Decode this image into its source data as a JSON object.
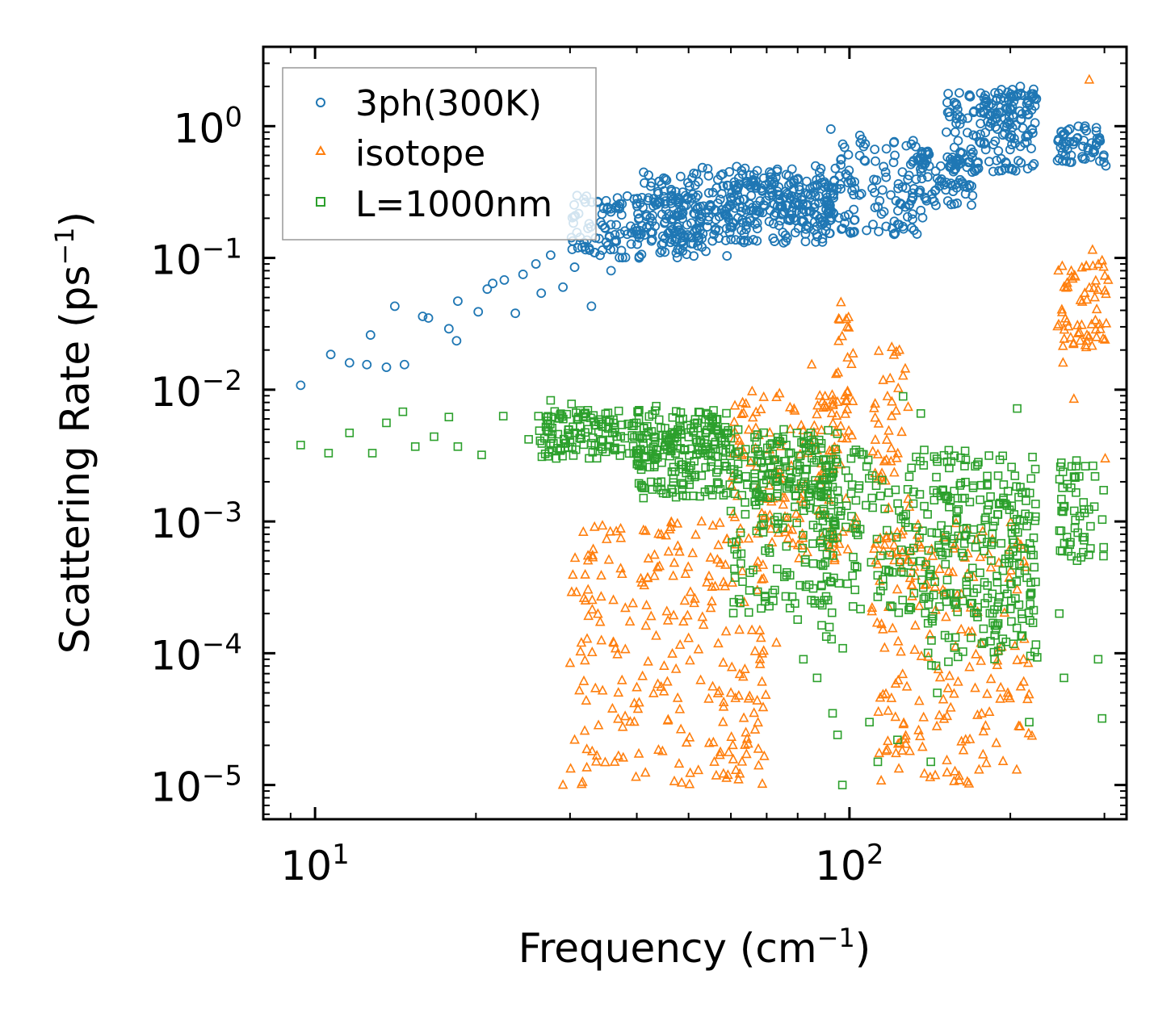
{
  "chart_data": {
    "type": "scatter",
    "xscale": "log",
    "yscale": "log",
    "xlim": [
      8,
      330
    ],
    "ylim": [
      5.5e-06,
      4
    ],
    "xlabel": "Frequency (cm",
    "xlabel_sup": "−1",
    "xlabel_end": ")",
    "ylabel": "Scattering Rate (ps",
    "ylabel_sup": "−1",
    "ylabel_end": ")",
    "x_major_ticks": [
      {
        "value": 10,
        "base": "10",
        "exp": "1"
      },
      {
        "value": 100,
        "base": "10",
        "exp": "2"
      }
    ],
    "y_major_ticks": [
      {
        "value": 1,
        "base": "10",
        "exp": "0"
      },
      {
        "value": 0.1,
        "base": "10",
        "exp": "−1"
      },
      {
        "value": 0.01,
        "base": "10",
        "exp": "−2"
      },
      {
        "value": 0.001,
        "base": "10",
        "exp": "−3"
      },
      {
        "value": 0.0001,
        "base": "10",
        "exp": "−4"
      },
      {
        "value": 1e-05,
        "base": "10",
        "exp": "−5"
      }
    ],
    "legend_position": "top-left",
    "series": [
      {
        "name": "3ph(300K)",
        "marker": "circle",
        "color": "#1f77b4",
        "points": [
          [
            9.4,
            0.0108
          ],
          [
            10.7,
            0.0185
          ],
          [
            11.6,
            0.016
          ],
          [
            12.5,
            0.0155
          ],
          [
            12.7,
            0.026
          ],
          [
            13.6,
            0.0148
          ],
          [
            14.1,
            0.043
          ],
          [
            14.7,
            0.0155
          ],
          [
            15.9,
            0.036
          ],
          [
            16.3,
            0.035
          ],
          [
            17.8,
            0.029
          ],
          [
            18.5,
            0.047
          ],
          [
            18.4,
            0.0235
          ],
          [
            20.2,
            0.039
          ],
          [
            21,
            0.058
          ],
          [
            21.5,
            0.064
          ],
          [
            22.6,
            0.068
          ],
          [
            23.7,
            0.038
          ],
          [
            24.5,
            0.075
          ],
          [
            25.9,
            0.09
          ],
          [
            26.5,
            0.054
          ],
          [
            27.6,
            0.105
          ],
          [
            29.1,
            0.06
          ],
          [
            30.6,
            0.085
          ],
          [
            31.6,
            0.12
          ],
          [
            32.9,
            0.043
          ],
          [
            34,
            0.14
          ],
          [
            35.8,
            0.08
          ],
          [
            38,
            0.16
          ],
          [
            40.4,
            0.1
          ],
          [
            42.8,
            0.21
          ],
          [
            46.4,
            0.26
          ],
          [
            50.2,
            0.35
          ],
          [
            54.5,
            0.42
          ],
          [
            59.6,
            0.45
          ],
          [
            64.4,
            0.38
          ],
          [
            70.9,
            0.33
          ],
          [
            76.5,
            0.25
          ],
          [
            84.6,
            0.3
          ],
          [
            92.3,
            0.95
          ],
          [
            104.6,
            0.85
          ],
          [
            121.6,
            0.6
          ],
          [
            136.6,
            0.4
          ],
          [
            157.7,
            0.9
          ],
          [
            171.2,
            1.3
          ],
          [
            191.7,
            1.6
          ],
          [
            208.8,
            2.0
          ],
          [
            220.2,
            1.75
          ],
          [
            258.3,
            0.95
          ],
          [
            276,
            1.0
          ],
          [
            290,
            0.75
          ],
          [
            301.9,
            0.5
          ]
        ],
        "bands": [
          {
            "x": [
              30,
              60
            ],
            "y": [
              0.1,
              0.3
            ]
          },
          {
            "x": [
              40,
              95
            ],
            "y": [
              0.13,
              0.5
            ]
          },
          {
            "x": [
              60,
              95
            ],
            "y": [
              0.18,
              0.4
            ]
          },
          {
            "x": [
              95,
              140
            ],
            "y": [
              0.15,
              0.8
            ]
          },
          {
            "x": [
              125,
              170
            ],
            "y": [
              0.25,
              0.7
            ]
          },
          {
            "x": [
              150,
              225
            ],
            "y": [
              0.45,
              1.8
            ]
          },
          {
            "x": [
              175,
              225
            ],
            "y": [
              0.8,
              2.0
            ]
          },
          {
            "x": [
              245,
              300
            ],
            "y": [
              0.5,
              1.0
            ]
          }
        ]
      },
      {
        "name": "isotope",
        "marker": "triangle",
        "color": "#ff7f0e",
        "points": [
          [
            29.1,
            1e-05
          ],
          [
            30.6,
            2.2e-05
          ],
          [
            33,
            1.8e-05
          ],
          [
            40,
            5.5e-05
          ],
          [
            45,
            8e-05
          ],
          [
            50,
            0.00013
          ],
          [
            55,
            0.00022
          ],
          [
            58,
            3e-05
          ],
          [
            60,
            5e-05
          ],
          [
            62,
            1.1e-05
          ],
          [
            64,
            2.5e-05
          ],
          [
            68,
            9e-05
          ],
          [
            73,
            0.00012
          ],
          [
            85,
            0.0155
          ],
          [
            88,
            0.009
          ],
          [
            96.4,
            0.046
          ],
          [
            99,
            0.03
          ],
          [
            120,
            0.021
          ],
          [
            124,
            0.02
          ],
          [
            246,
            0.08
          ],
          [
            251,
            0.016
          ],
          [
            263,
            0.0085
          ],
          [
            281,
            2.25
          ],
          [
            285,
            0.115
          ],
          [
            290,
            0.025
          ],
          [
            297,
            0.0955
          ],
          [
            301,
            0.003
          ]
        ],
        "bands": [
          {
            "x": [
              30,
              70
            ],
            "y": [
              1e-05,
              0.001
            ]
          },
          {
            "x": [
              60,
              95
            ],
            "y": [
              0.0005,
              0.01
            ]
          },
          {
            "x": [
              93,
              103
            ],
            "y": [
              0.0005,
              0.04
            ]
          },
          {
            "x": [
              110,
              130
            ],
            "y": [
              0.0005,
              0.02
            ]
          },
          {
            "x": [
              110,
              220
            ],
            "y": [
              1e-05,
              0.001
            ]
          },
          {
            "x": [
              245,
              305
            ],
            "y": [
              0.02,
              0.09
            ]
          }
        ]
      },
      {
        "name": "L=1000nm",
        "marker": "square",
        "color": "#2ca02c",
        "points": [
          [
            9.4,
            0.0038
          ],
          [
            10.6,
            0.0033
          ],
          [
            11.6,
            0.0047
          ],
          [
            12.8,
            0.0033
          ],
          [
            13.6,
            0.0056
          ],
          [
            14.6,
            0.0068
          ],
          [
            15.4,
            0.0037
          ],
          [
            16.7,
            0.0044
          ],
          [
            17.8,
            0.0062
          ],
          [
            18.5,
            0.0037
          ],
          [
            20.5,
            0.0032
          ],
          [
            22.5,
            0.0063
          ],
          [
            25.1,
            0.0042
          ],
          [
            27.6,
            0.0083
          ],
          [
            30.2,
            0.0078
          ],
          [
            34.3,
            0.0055
          ],
          [
            39.2,
            0.0045
          ],
          [
            43.5,
            0.0075
          ],
          [
            48.8,
            0.006
          ],
          [
            55.4,
            0.006
          ],
          [
            60,
            0.0012
          ],
          [
            65,
            0.0003
          ],
          [
            72,
            0.00025
          ],
          [
            76,
            0.00027
          ],
          [
            80,
            0.00018
          ],
          [
            82,
            9e-05
          ],
          [
            87,
            6.5e-05
          ],
          [
            93,
            3.5e-05
          ],
          [
            95,
            2.4e-05
          ],
          [
            97,
            1e-05
          ],
          [
            109,
            3e-05
          ],
          [
            113,
            1.5e-05
          ],
          [
            123,
            2.2e-05
          ],
          [
            126,
            0.0089
          ],
          [
            136,
            0.0066
          ],
          [
            142,
            1.5e-05
          ],
          [
            146,
            5e-05
          ],
          [
            206,
            0.0072
          ],
          [
            217,
            3e-05
          ],
          [
            247,
            0.0002
          ],
          [
            252,
            6.5e-05
          ],
          [
            266,
            0.0029
          ],
          [
            292,
            9e-05
          ],
          [
            297,
            3.2e-05
          ]
        ],
        "bands": [
          {
            "x": [
              26,
              60
            ],
            "y": [
              0.003,
              0.007
            ]
          },
          {
            "x": [
              40,
              95
            ],
            "y": [
              0.0015,
              0.005
            ]
          },
          {
            "x": [
              60,
              95
            ],
            "y": [
              0.0002,
              0.003
            ]
          },
          {
            "x": [
              88,
              100
            ],
            "y": [
              0.0001,
              0.003
            ]
          },
          {
            "x": [
              100,
              225
            ],
            "y": [
              0.0002,
              0.0035
            ]
          },
          {
            "x": [
              140,
              225
            ],
            "y": [
              8e-05,
              0.002
            ]
          },
          {
            "x": [
              247,
              300
            ],
            "y": [
              0.0005,
              0.0028
            ]
          }
        ]
      }
    ]
  }
}
